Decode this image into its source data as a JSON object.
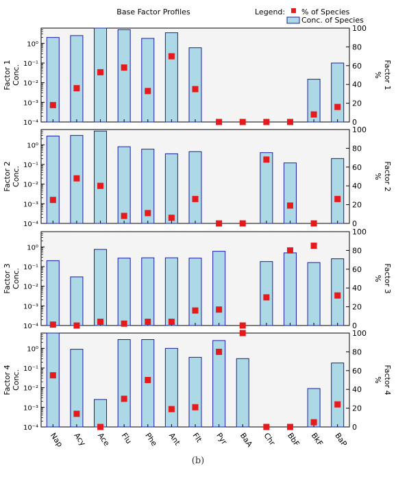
{
  "chart_data": {
    "type": "bar",
    "title": "Base Factor Profiles",
    "legend": {
      "title": "Legend:",
      "placement": "top-right",
      "entries": [
        {
          "label": "% of Species",
          "marker": "square",
          "color": "#e41a1c"
        },
        {
          "label": "Conc. of Species",
          "marker": "bar",
          "color": "#add8e6"
        }
      ]
    },
    "categories": [
      "Nap",
      "Acy",
      "Ace",
      "Flu",
      "Phe",
      "Ant",
      "Flt",
      "Pyr",
      "BaA",
      "Chr",
      "BbF",
      "BkF",
      "BaP"
    ],
    "left_axis": {
      "scale": "log",
      "range": [
        0.0001,
        6
      ],
      "ticks": [
        "10⁰",
        "10⁻¹",
        "10⁻²",
        "10⁻³",
        "10⁻⁴"
      ],
      "sublabel": "Conc."
    },
    "right_axis": {
      "scale": "linear",
      "range": [
        0,
        100
      ],
      "ticks": [
        0,
        20,
        40,
        60,
        80,
        100
      ],
      "unit": "%"
    },
    "grid": false,
    "factors": [
      {
        "name": "Factor 1",
        "conc": [
          2.0,
          2.5,
          6.0,
          5.0,
          1.8,
          3.5,
          0.6,
          null,
          null,
          null,
          null,
          0.015,
          0.1
        ],
        "percent": [
          18,
          36,
          53,
          58,
          33,
          70,
          35,
          0,
          0,
          0,
          0,
          8,
          16
        ]
      },
      {
        "name": "Factor 2",
        "conc": [
          2.8,
          3.0,
          5.0,
          0.8,
          0.6,
          0.35,
          0.45,
          null,
          null,
          0.4,
          0.12,
          null,
          0.2
        ],
        "percent": [
          25,
          48,
          40,
          8,
          11,
          6,
          26,
          0,
          0,
          68,
          19,
          0,
          26
        ]
      },
      {
        "name": "Factor 3",
        "conc": [
          0.2,
          0.03,
          0.75,
          0.27,
          0.28,
          0.28,
          0.27,
          0.6,
          null,
          0.18,
          0.5,
          0.16,
          0.25
        ],
        "percent": [
          1,
          0,
          4,
          2,
          4,
          4,
          16,
          17,
          0,
          30,
          80,
          85,
          32
        ]
      },
      {
        "name": "Factor 4",
        "conc": [
          6.0,
          0.9,
          0.0025,
          2.8,
          2.8,
          1.0,
          0.35,
          2.5,
          0.3,
          null,
          null,
          0.009,
          0.18
        ],
        "percent": [
          55,
          14,
          0,
          30,
          50,
          19,
          21,
          80,
          100,
          0,
          0,
          5,
          24
        ]
      }
    ]
  },
  "caption": "(b)"
}
